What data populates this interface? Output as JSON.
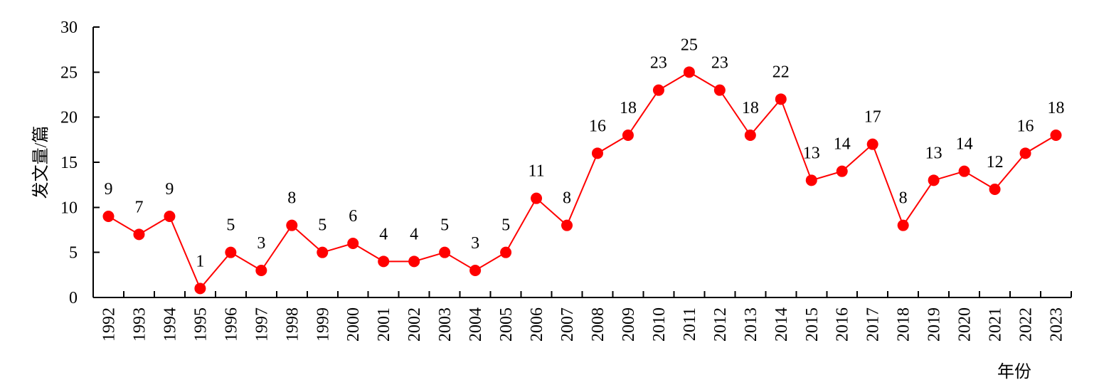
{
  "chart_data": {
    "type": "line",
    "x": [
      "1992",
      "1993",
      "1994",
      "1995",
      "1996",
      "1997",
      "1998",
      "1999",
      "2000",
      "2001",
      "2002",
      "2003",
      "2004",
      "2005",
      "2006",
      "2007",
      "2008",
      "2009",
      "2010",
      "2011",
      "2012",
      "2013",
      "2014",
      "2015",
      "2016",
      "2017",
      "2018",
      "2019",
      "2020",
      "2021",
      "2022",
      "2023"
    ],
    "series": [
      {
        "values": [
          9,
          7,
          9,
          1,
          5,
          3,
          8,
          5,
          6,
          4,
          4,
          5,
          3,
          5,
          11,
          8,
          16,
          18,
          23,
          25,
          23,
          18,
          22,
          13,
          14,
          17,
          8,
          13,
          14,
          12,
          16,
          18
        ],
        "color": "#ff0000"
      }
    ],
    "xlabel": "年份",
    "ylabel": "发文量/篇",
    "ylim": [
      0,
      30
    ],
    "yticks": [
      0,
      5,
      10,
      15,
      20,
      25,
      30
    ],
    "grid": false,
    "legend": "none",
    "data_labels": true
  }
}
